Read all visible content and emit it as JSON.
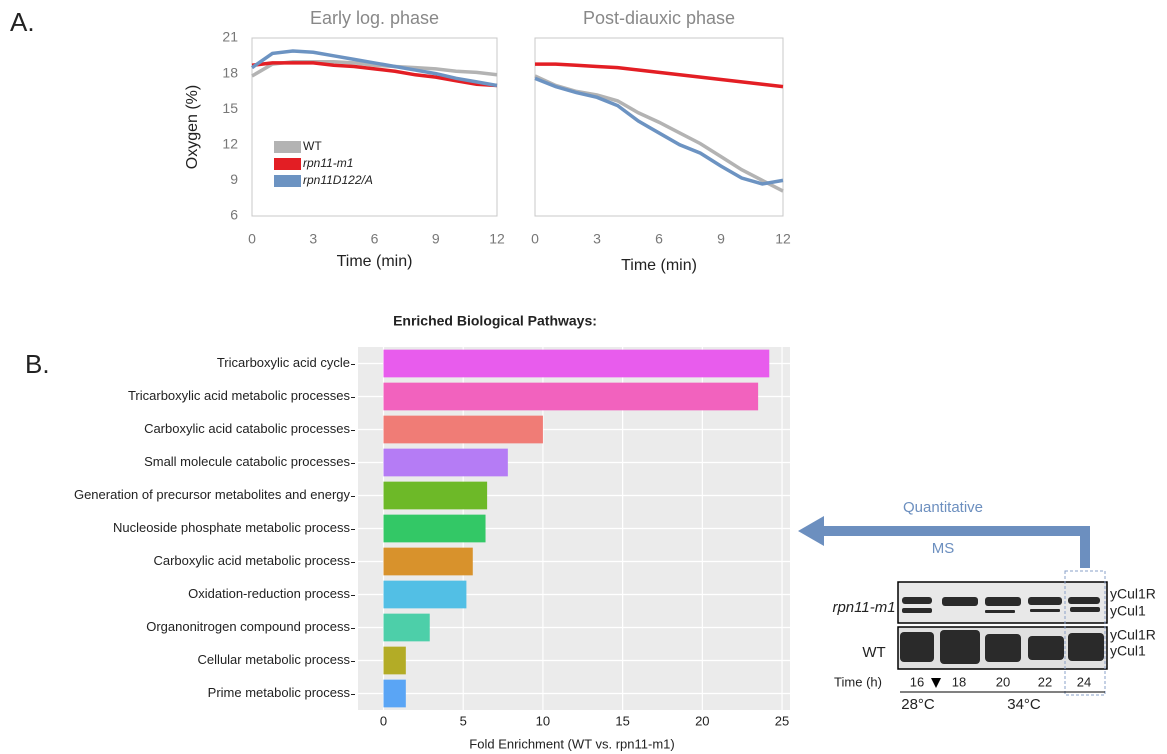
{
  "chart_data": [
    {
      "type": "line",
      "title": "Early log.  phase",
      "xlabel": "Time (min)",
      "ylabel": "Oxygen (%)",
      "x": [
        0,
        1,
        2,
        3,
        4,
        5,
        6,
        7,
        8,
        9,
        10,
        11,
        12
      ],
      "series": [
        {
          "name": "WT",
          "color": "#b3b3b3",
          "values": [
            17.8,
            18.8,
            19.0,
            19.0,
            19.0,
            18.9,
            18.7,
            18.6,
            18.5,
            18.4,
            18.2,
            18.1,
            17.9
          ]
        },
        {
          "name": "rpn11-m1",
          "color": "#e31e24",
          "values": [
            18.7,
            18.9,
            18.9,
            18.9,
            18.7,
            18.6,
            18.4,
            18.2,
            17.9,
            17.7,
            17.4,
            17.1,
            17.0
          ]
        },
        {
          "name": "rpn11D122/A",
          "color": "#6c93c2",
          "values": [
            18.5,
            19.7,
            19.9,
            19.8,
            19.5,
            19.2,
            18.9,
            18.6,
            18.3,
            18.0,
            17.6,
            17.3,
            17.0
          ]
        }
      ],
      "xlim": [
        0,
        12
      ],
      "xticks": [
        0,
        3,
        6,
        9,
        12
      ],
      "ylim": [
        6,
        21
      ],
      "yticks": [
        6,
        9,
        12,
        15,
        18,
        21
      ],
      "legend": "lower left"
    },
    {
      "type": "line",
      "title": "Post-diauxic phase",
      "xlabel": "Time (min)",
      "x": [
        0,
        1,
        2,
        3,
        4,
        5,
        6,
        7,
        8,
        9,
        10,
        11,
        12
      ],
      "series": [
        {
          "name": "WT",
          "color": "#b3b3b3",
          "values": [
            17.8,
            17.0,
            16.5,
            16.2,
            15.7,
            14.7,
            13.9,
            13.0,
            12.1,
            11.0,
            9.9,
            9.0,
            8.1
          ]
        },
        {
          "name": "rpn11-m1",
          "color": "#e31e24",
          "values": [
            18.8,
            18.8,
            18.7,
            18.6,
            18.5,
            18.3,
            18.1,
            17.9,
            17.7,
            17.5,
            17.3,
            17.1,
            16.9
          ]
        },
        {
          "name": "rpn11D122/A",
          "color": "#6c93c2",
          "values": [
            17.6,
            16.9,
            16.4,
            16.0,
            15.3,
            14.0,
            13.0,
            12.0,
            11.3,
            10.2,
            9.2,
            8.7,
            9.0
          ]
        }
      ],
      "xlim": [
        0,
        12
      ],
      "xticks": [
        0,
        3,
        6,
        9,
        12
      ],
      "ylim": [
        6,
        21
      ]
    },
    {
      "type": "hbar",
      "title": "Enriched Biological Pathways:",
      "xlabel": "Fold Enrichment (WT vs. rpn11-m1)",
      "categories": [
        "Tricarboxylic acid cycle",
        "Tricarboxylic acid metabolic processes",
        "Carboxylic acid catabolic processes",
        "Small molecule catabolic processes",
        "Generation of precursor metabolites and energy",
        "Nucleoside phosphate metabolic process",
        "Carboxylic acid metabolic process",
        "Oxidation-reduction process",
        "Organonitrogen compound process",
        "Cellular metabolic process",
        "Prime metabolic process"
      ],
      "values": [
        24.2,
        23.5,
        10.0,
        7.8,
        6.5,
        6.4,
        5.6,
        5.2,
        2.9,
        1.4,
        1.4
      ],
      "colors": [
        "#e85ced",
        "#f262be",
        "#f07c76",
        "#b57cf5",
        "#6db928",
        "#33c866",
        "#d8922c",
        "#52bfe5",
        "#4dcfa9",
        "#b3ac26",
        "#5aa5f5"
      ],
      "xlim": [
        -1.6,
        25.5
      ],
      "xticks": [
        0,
        5,
        10,
        15,
        20,
        25
      ],
      "grid": true
    }
  ],
  "panels": {
    "a": "A.",
    "b": "B."
  },
  "arrow": {
    "top": "Quantitative",
    "bottom": "MS"
  },
  "blot": {
    "rows": [
      "rpn11-m1",
      "WT"
    ],
    "bands": [
      "yCul1R",
      "yCul1"
    ],
    "time_label": "Time (h)",
    "times": [
      "16",
      "18",
      "20",
      "22",
      "24"
    ],
    "temps": [
      "28°C",
      "34°C"
    ]
  }
}
